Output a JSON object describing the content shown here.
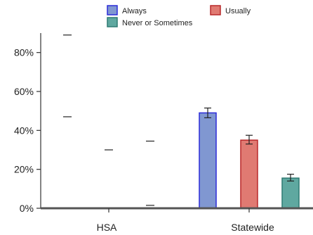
{
  "chart_data": {
    "type": "bar",
    "categories": [
      "HSA",
      "Statewide"
    ],
    "y_axis": {
      "min": 0,
      "max": 0.9,
      "ticks": [
        0,
        0.2,
        0.4,
        0.6,
        0.8
      ],
      "format": "percent"
    },
    "grid": false,
    "legend_position": "top",
    "series": [
      {
        "name": "Always",
        "color": "#8097d1",
        "stroke": "#2b2bd9",
        "values": [
          null,
          0.49
        ],
        "error_low": [
          0.47,
          0.465
        ],
        "error_high": [
          0.89,
          0.515
        ]
      },
      {
        "name": "Usually",
        "color": "#e07a72",
        "stroke": "#b8282a",
        "values": [
          null,
          0.35
        ],
        "error_low": [
          0.0,
          0.33
        ],
        "error_high": [
          0.3,
          0.375
        ]
      },
      {
        "name": "Never or Sometimes",
        "color": "#5fa8a0",
        "stroke": "#2f7a72",
        "values": [
          null,
          0.155
        ],
        "error_low": [
          0.015,
          0.14
        ],
        "error_high": [
          0.345,
          0.175
        ]
      }
    ],
    "tick_labels": [
      "0%",
      "20%",
      "40%",
      "60%",
      "80%"
    ]
  }
}
